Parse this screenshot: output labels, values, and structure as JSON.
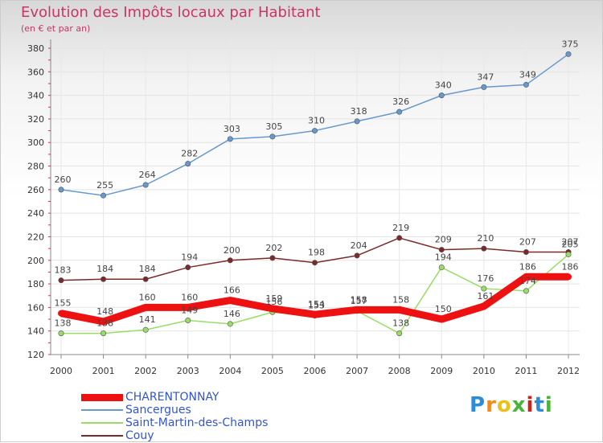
{
  "header": {
    "title": "Evolution des Impôts locaux par Habitant",
    "subtitle": "(en € et par an)"
  },
  "logo": {
    "text": "Proxiti",
    "letter_colors": [
      "#2e8bd6",
      "#f08a1c",
      "#e8c21a",
      "#49b43a",
      "#c9231b",
      "#2e8bd6",
      "#49b43a"
    ]
  },
  "chart_data": {
    "type": "line",
    "title": "Evolution des Impôts locaux par Habitant",
    "subtitle": "(en € et par an)",
    "xlabel": "",
    "ylabel": "",
    "x": [
      "2000",
      "2001",
      "2002",
      "2003",
      "2004",
      "2005",
      "2006",
      "2007",
      "2008",
      "2009",
      "2010",
      "2011",
      "2012"
    ],
    "ylim": [
      120,
      380
    ],
    "yticks": [
      120,
      140,
      160,
      180,
      200,
      220,
      240,
      260,
      280,
      300,
      320,
      340,
      360,
      380
    ],
    "grid": true,
    "legend_position": "bottom-left",
    "series": [
      {
        "name": "CHARENTONNAY",
        "color": "#ee1111",
        "values": [
          155,
          148,
          160,
          160,
          166,
          159,
          154,
          158,
          158,
          150,
          161,
          186,
          186
        ],
        "labels": [
          "155",
          "148",
          "160",
          "160",
          "166",
          "159",
          "154",
          "158",
          "158",
          "150",
          "161",
          "186",
          "186"
        ]
      },
      {
        "name": "Sancergues",
        "color": "#6699cc",
        "values": [
          260,
          255,
          264,
          282,
          303,
          305,
          310,
          318,
          326,
          340,
          347,
          349,
          375
        ],
        "labels": [
          "260",
          "255",
          "264",
          "282",
          "303",
          "305",
          "310",
          "318",
          "326",
          "340",
          "347",
          "349",
          "375"
        ]
      },
      {
        "name": "Saint-Martin-des-Champs",
        "color": "#99dd66",
        "values": [
          138,
          138,
          141,
          149,
          146,
          156,
          153,
          157,
          138,
          194,
          176,
          174,
          205
        ],
        "labels": [
          "138",
          "138",
          "141",
          "149",
          "146",
          "156",
          "153",
          "157",
          "138",
          "194",
          "176",
          "174",
          "205"
        ]
      },
      {
        "name": "Couy",
        "color": "#7a2a2a",
        "values": [
          183,
          184,
          184,
          194,
          200,
          202,
          198,
          204,
          219,
          209,
          210,
          207,
          207
        ],
        "labels": [
          "183",
          "184",
          "184",
          "194",
          "200",
          "202",
          "198",
          "204",
          "219",
          "209",
          "210",
          "207",
          "207"
        ]
      }
    ]
  }
}
